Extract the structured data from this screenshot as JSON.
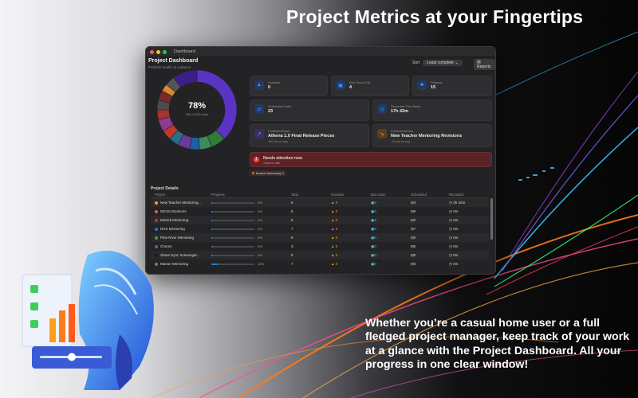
{
  "headline": "Project Metrics at your Fingertips",
  "tagline": "Whether you’re a casual home user or a full fledged project manager, keep track of your work at a glance with the Project Dashboard. All your progress in one clear window!",
  "window": {
    "title": "Dashboard",
    "dashboard_title": "Project Dashboard",
    "dashboard_subtitle": "Portfolio health at a glance",
    "sort_label": "Sort",
    "sort_value": "Least complete",
    "reports_label": "Reports"
  },
  "donut": {
    "percent_label": "78%",
    "subtitle": "186 of 240 done",
    "segments": [
      {
        "value": 38,
        "color": "#5b34c6"
      },
      {
        "value": 6,
        "color": "#2f7d3a"
      },
      {
        "value": 5,
        "color": "#3d8a5a"
      },
      {
        "value": 4,
        "color": "#1f5fa8"
      },
      {
        "value": 5,
        "color": "#6b3a9e"
      },
      {
        "value": 4,
        "color": "#2a6f8a"
      },
      {
        "value": 4,
        "color": "#c0392b"
      },
      {
        "value": 5,
        "color": "#8e3b8e"
      },
      {
        "value": 4,
        "color": "#a93232"
      },
      {
        "value": 4,
        "color": "#4b4b4d"
      },
      {
        "value": 4,
        "color": "#7a2a2a"
      },
      {
        "value": 3,
        "color": "#d98a2b"
      },
      {
        "value": 4,
        "color": "#555558"
      },
      {
        "value": 10,
        "color": "#3a1f8c"
      }
    ]
  },
  "cards": {
    "overdue": {
      "label": "Overdue",
      "value": "0"
    },
    "due_soon": {
      "label": "Due Soon (7d)",
      "value": "4"
    },
    "projects": {
      "label": "Projects",
      "value": "15"
    },
    "scheduled": {
      "label": "Scheduled Work",
      "value": "23"
    },
    "recorded": {
      "label": "Recorded This Week",
      "value": "17h 42m"
    },
    "furthest_ahead": {
      "label": "Furthest Ahead",
      "value": "Athena 1.0 Final Release Pieces",
      "sub": "+60 pts vs avg"
    },
    "furthest_behind": {
      "label": "Furthest Behind",
      "value": "New Teacher Mentoring Revisions",
      "sub": "-18 pts vs avg"
    }
  },
  "alert": {
    "title": "Needs attention now",
    "subtitle": "3 due in 48h",
    "chip": "Mosick Mentoring 3"
  },
  "details": {
    "title": "Project Details",
    "headers": [
      "Project",
      "Progress",
      "Total",
      "Overdue",
      "Due Soon",
      "Scheduled",
      "Recorded"
    ],
    "rows": [
      {
        "name": "New Teacher Mentoring...",
        "color": "#f5a623",
        "progress": 0,
        "pct": "0%",
        "total": "5",
        "overdue": "0",
        "due": "0",
        "sched": "3",
        "rec": "2h 42m"
      },
      {
        "name": "MCSS Elections",
        "color": "#e0624a",
        "progress": 0,
        "pct": "0%",
        "total": "5",
        "overdue": "0",
        "due": "0",
        "sched": "0",
        "rec": "0m"
      },
      {
        "name": "Mosick Mentoring",
        "color": "#c0392b",
        "progress": 0,
        "pct": "0%",
        "total": "6",
        "overdue": "0",
        "due": "3",
        "sched": "2",
        "rec": "0m"
      },
      {
        "name": "DHS Mentoring",
        "color": "#2a6fdb",
        "progress": 0,
        "pct": "0%",
        "total": "7",
        "overdue": "0",
        "due": "0",
        "sched": "7",
        "rec": "0m"
      },
      {
        "name": "Pine River Mentoring",
        "color": "#34a853",
        "progress": 0,
        "pct": "0%",
        "total": "9",
        "overdue": "0",
        "due": "0",
        "sched": "0",
        "rec": "0m"
      },
      {
        "name": "Chores",
        "color": "#8e44ad",
        "progress": 0,
        "pct": "0%",
        "total": "3",
        "overdue": "0",
        "due": "0",
        "sched": "0",
        "rec": "0m"
      },
      {
        "name": "Share Sync Scavenger...",
        "color": "#1a1a1a",
        "progress": 0,
        "pct": "0%",
        "total": "9",
        "overdue": "0",
        "due": "0",
        "sched": "0",
        "rec": "0m"
      },
      {
        "name": "Marion Mentoring",
        "color": "#7a7a7a",
        "progress": 14,
        "pct": "14%",
        "total": "7",
        "overdue": "0",
        "due": "0",
        "sched": "0",
        "rec": "0m"
      }
    ]
  }
}
